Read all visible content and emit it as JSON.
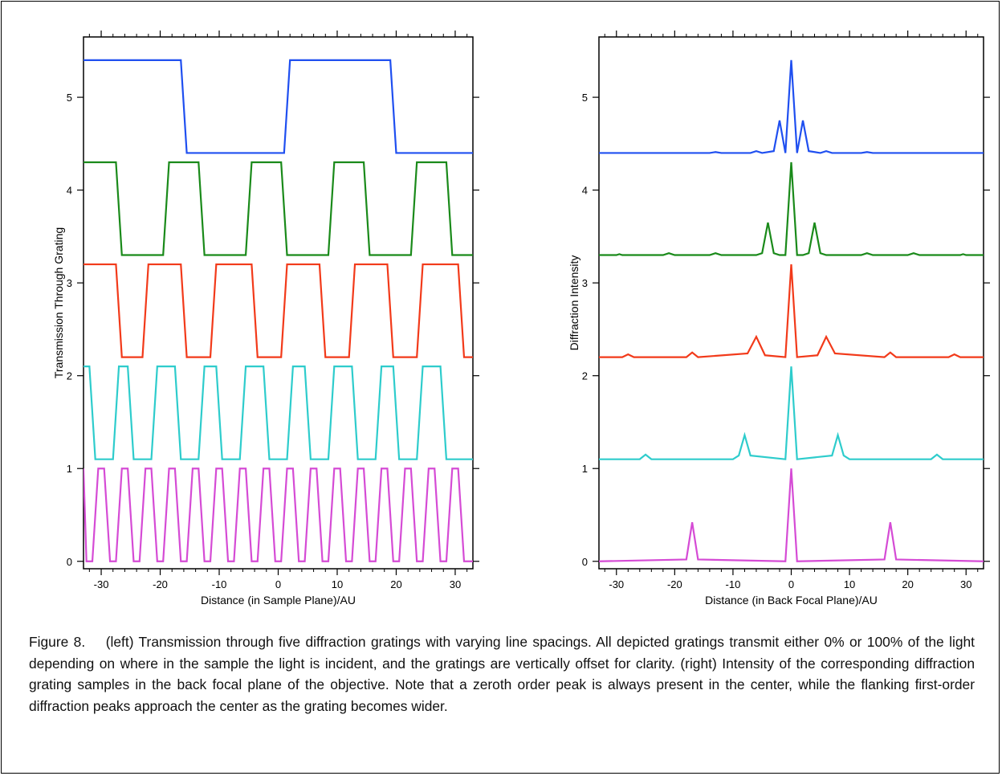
{
  "caption": {
    "figure_label": "Figure 8.",
    "text": "(left) Transmission through five diffraction gratings with varying line spacings. All depicted gratings transmit either 0% or 100% of the light depending on where in the sample the light is incident, and the gratings are vertically offset for clarity. (right) Intensity of the corresponding diffraction grating samples in the back focal plane of the objective. Note that a zeroth order peak is always present in the center, while the flanking first-order diffraction peaks approach the center as the grating becomes wider."
  },
  "colors": {
    "blue": "#1f4ff0",
    "green": "#1a8a1a",
    "red": "#f23a1a",
    "cyan": "#2ecccc",
    "magenta": "#d54bd5",
    "axis": "#000000"
  },
  "chart_data": [
    {
      "type": "line",
      "title": "",
      "xlabel": "Distance (in Sample Plane)/AU",
      "ylabel": "Transmission Through Grating",
      "xlim": [
        -33,
        33
      ],
      "ylim": [
        -0.08,
        5.65
      ],
      "xticks": [
        -30,
        -20,
        -10,
        0,
        10,
        20,
        30
      ],
      "yticks": [
        0,
        1,
        2,
        3,
        4,
        5
      ],
      "grid": false,
      "legend": "none",
      "series": [
        {
          "color": "blue",
          "x": [
            -33,
            -16.5,
            -15.5,
            1,
            2,
            19,
            20,
            33
          ],
          "y": [
            5.4,
            5.4,
            4.4,
            4.4,
            5.4,
            5.4,
            4.4,
            4.4
          ]
        },
        {
          "color": "green",
          "x": [
            -33,
            -27.5,
            -26.5,
            -19.5,
            -18.5,
            -13.5,
            -12.5,
            -5.5,
            -4.5,
            0.5,
            1.5,
            8.5,
            9.5,
            14.5,
            15.5,
            22.5,
            23.5,
            28.5,
            29.5,
            33
          ],
          "y": [
            4.3,
            4.3,
            3.3,
            3.3,
            4.3,
            4.3,
            3.3,
            3.3,
            4.3,
            4.3,
            3.3,
            3.3,
            4.3,
            4.3,
            3.3,
            3.3,
            4.3,
            4.3,
            3.3,
            3.3
          ]
        },
        {
          "color": "red",
          "x": [
            -33,
            -27.5,
            -26.5,
            -23,
            -22,
            -16.5,
            -15.5,
            -11.5,
            -10.5,
            -4.5,
            -3.5,
            0.5,
            1.5,
            7,
            8,
            12,
            13,
            18.5,
            19.5,
            23.5,
            24.5,
            30.5,
            31.5,
            33
          ],
          "y": [
            3.2,
            3.2,
            2.2,
            2.2,
            3.2,
            3.2,
            2.2,
            2.2,
            3.2,
            3.2,
            2.2,
            2.2,
            3.2,
            3.2,
            2.2,
            2.2,
            3.2,
            3.2,
            2.2,
            2.2,
            3.2,
            3.2,
            2.2,
            2.2
          ]
        },
        {
          "color": "cyan",
          "x": [
            -33,
            -32,
            -31,
            -28,
            -27,
            -25.5,
            -24.5,
            -21.5,
            -20.5,
            -17.5,
            -16.5,
            -13.5,
            -12.5,
            -10.5,
            -9.5,
            -6.5,
            -5.5,
            -2.5,
            -1.5,
            1.5,
            2.5,
            4.5,
            5.5,
            8.5,
            9.5,
            12.5,
            13.5,
            16.5,
            17.5,
            19.5,
            20.5,
            23.5,
            24.5,
            27.5,
            28.5,
            33
          ],
          "y": [
            2.1,
            2.1,
            1.1,
            1.1,
            2.1,
            2.1,
            1.1,
            1.1,
            2.1,
            2.1,
            1.1,
            1.1,
            2.1,
            2.1,
            1.1,
            1.1,
            2.1,
            2.1,
            1.1,
            1.1,
            2.1,
            2.1,
            1.1,
            1.1,
            2.1,
            2.1,
            1.1,
            1.1,
            2.1,
            2.1,
            1.1,
            1.1,
            2.1,
            2.1,
            1.1,
            1.1
          ]
        },
        {
          "color": "magenta",
          "x": [
            -33,
            -32.5,
            -31.5,
            -30.5,
            -29.5,
            -28.5,
            -27.5,
            -26.5,
            -25.5,
            -24.5,
            -23.5,
            -22.5,
            -21.5,
            -20.5,
            -19.5,
            -18.5,
            -17.5,
            -16.5,
            -15.5,
            -14.5,
            -13.5,
            -12.5,
            -11.5,
            -10.5,
            -9.5,
            -8.5,
            -7.5,
            -6.5,
            -5.5,
            -4.5,
            -3.5,
            -2.5,
            -1.5,
            -0.5,
            0.5,
            1.5,
            2.5,
            3.5,
            4.5,
            5.5,
            6.5,
            7.5,
            8.5,
            9.5,
            10.5,
            11.5,
            12.5,
            13.5,
            14.5,
            15.5,
            16.5,
            17.5,
            18.5,
            19.5,
            20.5,
            21.5,
            22.5,
            23.5,
            24.5,
            25.5,
            26.5,
            27.5,
            28.5,
            29.5,
            30.5,
            31.5,
            32.5,
            33
          ],
          "y": [
            1,
            0,
            0,
            1,
            1,
            0,
            0,
            1,
            1,
            0,
            0,
            1,
            1,
            0,
            0,
            1,
            1,
            0,
            0,
            1,
            1,
            0,
            0,
            1,
            1,
            0,
            0,
            1,
            1,
            0,
            0,
            1,
            1,
            0,
            0,
            1,
            1,
            0,
            0,
            1,
            1,
            0,
            0,
            1,
            1,
            0,
            0,
            1,
            1,
            0,
            0,
            1,
            1,
            0,
            0,
            1,
            1,
            0,
            0,
            1,
            1,
            0,
            0,
            1,
            1,
            0,
            0,
            0
          ]
        }
      ]
    },
    {
      "type": "line",
      "title": "",
      "xlabel": "Distance (in Back Focal Plane)/AU",
      "ylabel": "Diffraction Intensity",
      "xlim": [
        -33,
        33
      ],
      "ylim": [
        -0.08,
        5.65
      ],
      "xticks": [
        -30,
        -20,
        -10,
        0,
        10,
        20,
        30
      ],
      "yticks": [
        0,
        1,
        2,
        3,
        4,
        5
      ],
      "grid": false,
      "legend": "none",
      "series": [
        {
          "color": "blue",
          "x": [
            -33,
            -14,
            -13,
            -12,
            -7,
            -6,
            -5,
            -3,
            -2,
            -1,
            0,
            1,
            2,
            3,
            5,
            6,
            7,
            12,
            13,
            14,
            33
          ],
          "y": [
            4.4,
            4.4,
            4.41,
            4.4,
            4.4,
            4.42,
            4.4,
            4.42,
            4.75,
            4.4,
            5.4,
            4.4,
            4.75,
            4.42,
            4.4,
            4.42,
            4.4,
            4.4,
            4.41,
            4.4,
            4.4
          ]
        },
        {
          "color": "green",
          "x": [
            -33,
            -30,
            -29.5,
            -29,
            -22,
            -21,
            -20,
            -14,
            -13,
            -12,
            -6,
            -5,
            -4,
            -3,
            -2,
            -1,
            0,
            1,
            2,
            3,
            4,
            5,
            6,
            12,
            13,
            14,
            20,
            21,
            22,
            29,
            29.5,
            30,
            33
          ],
          "y": [
            3.3,
            3.3,
            3.31,
            3.3,
            3.3,
            3.32,
            3.3,
            3.3,
            3.32,
            3.3,
            3.3,
            3.32,
            3.65,
            3.32,
            3.3,
            3.3,
            4.3,
            3.3,
            3.3,
            3.32,
            3.65,
            3.32,
            3.3,
            3.3,
            3.32,
            3.3,
            3.3,
            3.32,
            3.3,
            3.3,
            3.31,
            3.3,
            3.3
          ]
        },
        {
          "color": "red",
          "x": [
            -33,
            -29,
            -28,
            -27,
            -18,
            -17,
            -16,
            -7.5,
            -6,
            -4.5,
            -1,
            0,
            1,
            4.5,
            6,
            7.5,
            16,
            17,
            18,
            27,
            28,
            29,
            33
          ],
          "y": [
            2.2,
            2.2,
            2.23,
            2.2,
            2.2,
            2.25,
            2.2,
            2.24,
            2.42,
            2.22,
            2.2,
            3.2,
            2.2,
            2.22,
            2.42,
            2.24,
            2.2,
            2.25,
            2.2,
            2.2,
            2.23,
            2.2,
            2.2
          ]
        },
        {
          "color": "cyan",
          "x": [
            -33,
            -26,
            -25,
            -24,
            -10,
            -9,
            -8,
            -7,
            -1,
            0,
            1,
            7,
            8,
            9,
            10,
            24,
            25,
            26,
            33
          ],
          "y": [
            1.1,
            1.1,
            1.15,
            1.1,
            1.1,
            1.14,
            1.36,
            1.14,
            1.1,
            2.1,
            1.1,
            1.14,
            1.36,
            1.14,
            1.1,
            1.1,
            1.15,
            1.1,
            1.1
          ]
        },
        {
          "color": "magenta",
          "x": [
            -33,
            -18,
            -17,
            -16,
            -1,
            0,
            1,
            16,
            17,
            18,
            33
          ],
          "y": [
            0.0,
            0.02,
            0.42,
            0.02,
            0.0,
            1.0,
            0.0,
            0.02,
            0.42,
            0.02,
            0.0
          ]
        }
      ]
    }
  ]
}
